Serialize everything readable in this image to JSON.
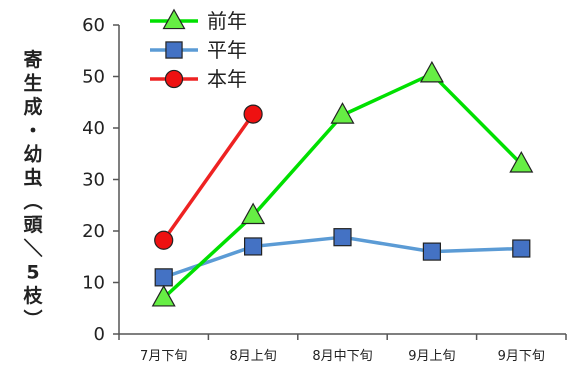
{
  "chart_data": {
    "type": "line",
    "title": "",
    "xlabel": "",
    "ylabel": "寄生成・幼虫（頭／5枝）",
    "categories": [
      "7月下旬",
      "8月上旬",
      "8月中下旬",
      "9月上旬",
      "9月下旬"
    ],
    "ylim": [
      0,
      60
    ],
    "yticks": [
      0,
      10,
      20,
      30,
      40,
      50,
      60
    ],
    "grid": false,
    "legend_position": "top-left",
    "series": [
      {
        "name": "前年",
        "values": [
          7,
          23,
          42.5,
          50.5,
          33
        ],
        "color": "#00e000",
        "marker": "triangle",
        "marker_fill": "#66ee44"
      },
      {
        "name": "平年",
        "values": [
          11,
          17,
          18.8,
          16,
          16.6
        ],
        "color": "#5b9bd5",
        "marker": "square",
        "marker_fill": "#4472c4"
      },
      {
        "name": "本年",
        "values": [
          18.2,
          42.7,
          null,
          null,
          null
        ],
        "color": "#ee2222",
        "marker": "circle",
        "marker_fill": "#ee1111"
      }
    ]
  }
}
